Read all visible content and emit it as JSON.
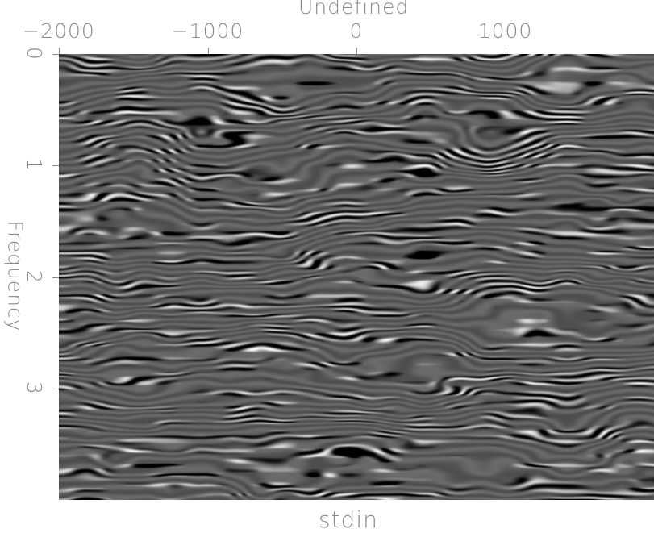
{
  "chart_data": {
    "type": "heatmap",
    "title": "stdin",
    "xlabel": "Undefined",
    "ylabel": "Frequency",
    "xlim": [
      -2000,
      2000
    ],
    "ylim": [
      0,
      4
    ],
    "y_inverted": true,
    "x_axis_position": "top",
    "xticks": [
      -2000,
      -1000,
      0,
      1000
    ],
    "xtick_labels": [
      "−2000",
      "−1000",
      "0",
      "1000"
    ],
    "yticks": [
      0,
      1,
      2,
      3
    ],
    "ytick_labels": [
      "0",
      "1",
      "2",
      "3"
    ],
    "colormap": "grayscale",
    "grid": false
  }
}
